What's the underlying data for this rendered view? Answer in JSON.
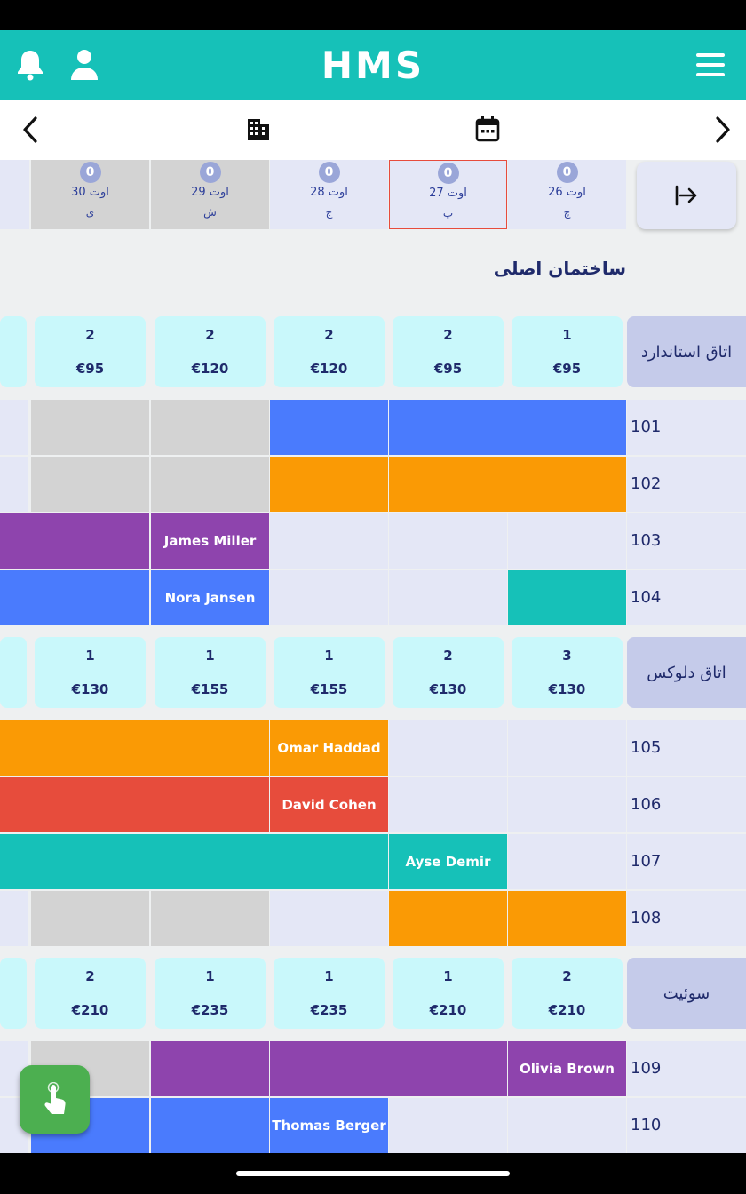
{
  "app": {
    "logo": "HMS"
  },
  "header_icons": {
    "notifications": "bell-icon",
    "profile": "user-icon",
    "menu": "hamburger-icon"
  },
  "nav_icons": {
    "prev": "chevron-left-icon",
    "building": "building-icon",
    "calendar": "calendar-icon",
    "next": "chevron-right-icon"
  },
  "days": [
    {
      "count": "0",
      "date": "26 اوت",
      "day": "چ",
      "weekend": false,
      "selected": false
    },
    {
      "count": "0",
      "date": "27 اوت",
      "day": "پ",
      "weekend": false,
      "selected": true
    },
    {
      "count": "0",
      "date": "28 اوت",
      "day": "ج",
      "weekend": false,
      "selected": false
    },
    {
      "count": "0",
      "date": "29 اوت",
      "day": "ش",
      "weekend": true,
      "selected": false
    },
    {
      "count": "0",
      "date": "30 اوت",
      "day": "ی",
      "weekend": true,
      "selected": false
    }
  ],
  "building": {
    "title": "ساختمان اصلی"
  },
  "room_types": [
    {
      "name": "اتاق استاندارد",
      "availability": [
        {
          "count": "1",
          "price": "€95"
        },
        {
          "count": "2",
          "price": "€95"
        },
        {
          "count": "2",
          "price": "€120"
        },
        {
          "count": "2",
          "price": "€120"
        },
        {
          "count": "2",
          "price": "€95"
        }
      ],
      "rooms": [
        {
          "number": "101",
          "bookings": [
            {
              "start": 0,
              "end": 2,
              "color": "#4a7bfd",
              "guest": ""
            },
            {
              "start": 2,
              "end": 3,
              "color": "#4a7bfd",
              "guest": ""
            }
          ],
          "gray": [
            3,
            4
          ]
        },
        {
          "number": "102",
          "bookings": [
            {
              "start": 0,
              "end": 2,
              "color": "#fa9a05",
              "guest": ""
            },
            {
              "start": 2,
              "end": 3,
              "color": "#fa9a05",
              "guest": ""
            }
          ],
          "gray": [
            3,
            4
          ]
        },
        {
          "number": "103",
          "bookings": [
            {
              "start": 3,
              "end": 4,
              "color": "#8e44ad",
              "guest": "James Miller"
            },
            {
              "start": 4,
              "end": 6,
              "color": "#8e44ad",
              "guest": ""
            }
          ],
          "gray": []
        },
        {
          "number": "104",
          "bookings": [
            {
              "start": 0,
              "end": 1,
              "color": "#16c1b8",
              "guest": ""
            },
            {
              "start": 3,
              "end": 4,
              "color": "#4a7bfd",
              "guest": "Nora Jansen"
            },
            {
              "start": 4,
              "end": 6,
              "color": "#4a7bfd",
              "guest": ""
            }
          ],
          "gray": []
        }
      ]
    },
    {
      "name": "اتاق دلوکس",
      "availability": [
        {
          "count": "3",
          "price": "€130"
        },
        {
          "count": "2",
          "price": "€130"
        },
        {
          "count": "1",
          "price": "€155"
        },
        {
          "count": "1",
          "price": "€155"
        },
        {
          "count": "1",
          "price": "€130"
        }
      ],
      "rooms": [
        {
          "number": "105",
          "bookings": [
            {
              "start": 2,
              "end": 3,
              "color": "#fa9a05",
              "guest": "Omar Haddad"
            },
            {
              "start": 3,
              "end": 6,
              "color": "#fa9a05",
              "guest": ""
            }
          ],
          "gray": []
        },
        {
          "number": "106",
          "bookings": [
            {
              "start": 2,
              "end": 3,
              "color": "#e74c3c",
              "guest": "David Cohen"
            },
            {
              "start": 3,
              "end": 6,
              "color": "#e74c3c",
              "guest": ""
            }
          ],
          "gray": []
        },
        {
          "number": "107",
          "bookings": [
            {
              "start": 1,
              "end": 2,
              "color": "#16c1b8",
              "guest": "Ayse Demir"
            },
            {
              "start": 2,
              "end": 5,
              "color": "#16c1b8",
              "guest": ""
            },
            {
              "start": 5,
              "end": 6,
              "color": "#16c1b8",
              "guest": ""
            }
          ],
          "gray": []
        },
        {
          "number": "108",
          "bookings": [
            {
              "start": 0,
              "end": 1,
              "color": "#fa9a05",
              "guest": ""
            },
            {
              "start": 1,
              "end": 2,
              "color": "#fa9a05",
              "guest": ""
            }
          ],
          "gray": [
            3,
            4
          ]
        }
      ]
    },
    {
      "name": "سوئیت",
      "availability": [
        {
          "count": "2",
          "price": "€210"
        },
        {
          "count": "1",
          "price": "€210"
        },
        {
          "count": "1",
          "price": "€235"
        },
        {
          "count": "1",
          "price": "€235"
        },
        {
          "count": "2",
          "price": "€210"
        }
      ],
      "rooms": [
        {
          "number": "109",
          "bookings": [
            {
              "start": 0,
              "end": 1,
              "color": "#8e44ad",
              "guest": "Olivia Brown"
            },
            {
              "start": 1,
              "end": 3,
              "color": "#8e44ad",
              "guest": ""
            },
            {
              "start": 3,
              "end": 4,
              "color": "#8e44ad",
              "guest": ""
            }
          ],
          "gray": [
            4
          ]
        },
        {
          "number": "110",
          "bookings": [
            {
              "start": 2,
              "end": 3,
              "color": "#4a7bfd",
              "guest": "Thomas Berger"
            },
            {
              "start": 3,
              "end": 4,
              "color": "#4a7bfd",
              "guest": ""
            },
            {
              "start": 4,
              "end": 5,
              "color": "#4a7bfd",
              "guest": ""
            }
          ],
          "gray": []
        }
      ]
    }
  ],
  "fab_icon": "tap-hand-icon"
}
